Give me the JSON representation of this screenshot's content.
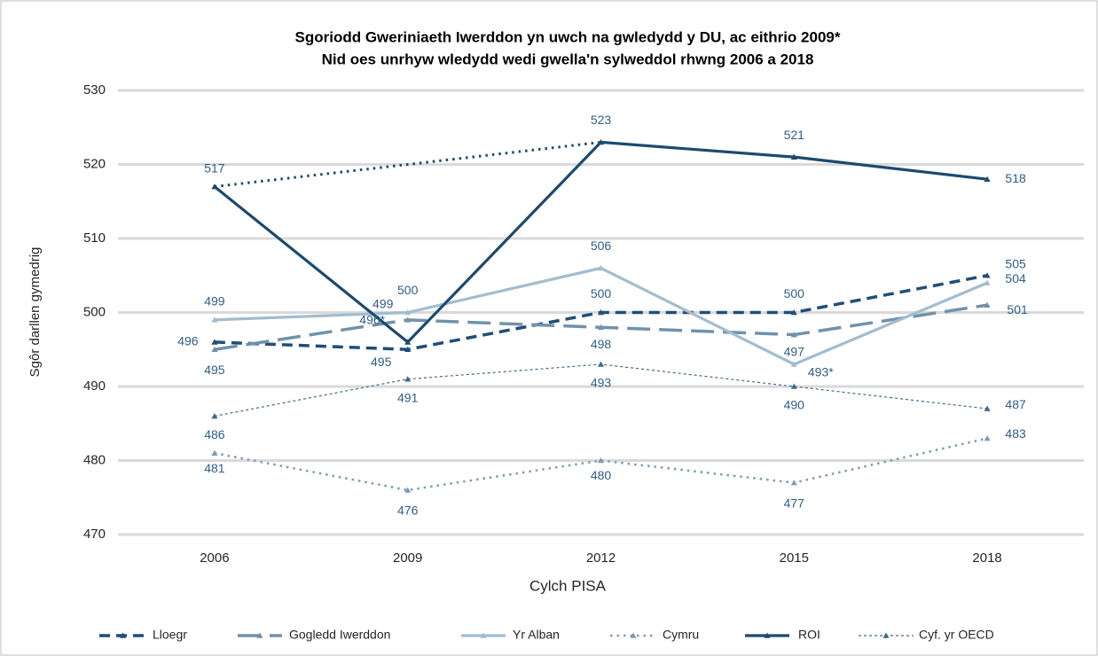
{
  "chart_data": {
    "type": "line",
    "title": [
      "Sgoriodd Gweriniaeth Iwerddon yn uwch na gwledydd y DU, ac eithrio 2009*",
      "Nid oes unrhyw wledydd wedi gwella'n sylweddol rhwng 2006 a 2018"
    ],
    "x_label": "Cylch PISA",
    "y_label": "Sgôr darllen gymedrig",
    "categories": [
      "2006",
      "2009",
      "2012",
      "2015",
      "2018"
    ],
    "ylim": [
      470,
      530
    ],
    "yticks": [
      470,
      480,
      490,
      500,
      510,
      520,
      530
    ],
    "grid": true,
    "legend": "bottom",
    "series": [
      {
        "name": "Lloegr",
        "color": "#1f4e79",
        "style": "dashed",
        "values": [
          496,
          495,
          500,
          500,
          505
        ]
      },
      {
        "name": "Gogledd Iwerddon",
        "color": "#7092ab",
        "style": "long-dash",
        "values": [
          495,
          499,
          498,
          497,
          501
        ]
      },
      {
        "name": "Yr Alban",
        "color": "#a3bccf",
        "style": "solid",
        "values": [
          499,
          500,
          506,
          493,
          504
        ],
        "value_labels": [
          "499",
          "500",
          "506",
          "493*",
          "504"
        ]
      },
      {
        "name": "Cymru",
        "color": "#7b9cb8",
        "style": "dotted",
        "values": [
          481,
          476,
          480,
          477,
          483
        ]
      },
      {
        "name": "ROI",
        "color": "#1c4a6e",
        "style": "solid",
        "values": [
          517,
          496,
          523,
          521,
          518
        ],
        "value_labels": [
          "517",
          "496*",
          "523",
          "521",
          "518"
        ]
      },
      {
        "name": "Cyf. yr OECD",
        "color": "#3d6a94",
        "style": "thin-dashed",
        "values": [
          486,
          491,
          493,
          490,
          487
        ]
      }
    ]
  }
}
